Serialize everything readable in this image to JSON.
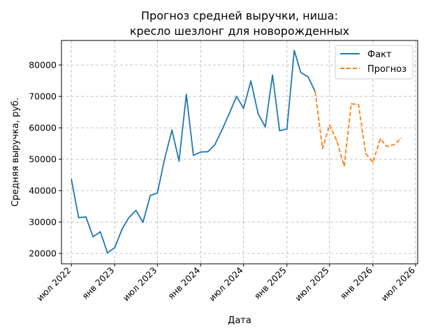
{
  "chart_data": {
    "type": "line",
    "title": "Прогноз средней выручки, ниша:\nкресло шезлонг для новорожденных",
    "title_lines": [
      "Прогноз средней выручки, ниша:",
      "кресло шезлонг для новорожденных"
    ],
    "xlabel": "Дата",
    "ylabel": "Средняя выручка, руб.",
    "x_ticks": [
      "2022-07-01",
      "2023-01-01",
      "2023-07-01",
      "2024-01-01",
      "2024-07-01",
      "2025-01-01",
      "2025-07-01",
      "2026-01-01",
      "2026-07-01"
    ],
    "x_tick_labels": [
      "июл 2022",
      "янв 2023",
      "июл 2023",
      "янв 2024",
      "июл 2024",
      "янв 2025",
      "июл 2025",
      "янв 2026",
      "июл 2026"
    ],
    "y_ticks": [
      20000,
      30000,
      40000,
      50000,
      60000,
      70000,
      80000
    ],
    "y_tick_labels": [
      "20000",
      "30000",
      "40000",
      "50000",
      "60000",
      "70000",
      "80000"
    ],
    "xlim": [
      "2022-05-20",
      "2026-07-10"
    ],
    "ylim": [
      16700,
      87800
    ],
    "grid": true,
    "legend": "top-right",
    "series": [
      {
        "name": "Факт",
        "color": "#1f77b4",
        "style": "solid",
        "points": [
          [
            "2022-07-01",
            43600
          ],
          [
            "2022-08-01",
            31400
          ],
          [
            "2022-09-01",
            31600
          ],
          [
            "2022-10-01",
            25300
          ],
          [
            "2022-11-01",
            26900
          ],
          [
            "2022-12-01",
            20200
          ],
          [
            "2023-01-01",
            21800
          ],
          [
            "2023-02-01",
            27700
          ],
          [
            "2023-03-01",
            31300
          ],
          [
            "2023-04-01",
            33700
          ],
          [
            "2023-05-01",
            29900
          ],
          [
            "2023-06-01",
            38500
          ],
          [
            "2023-07-01",
            39200
          ],
          [
            "2023-08-01",
            50100
          ],
          [
            "2023-09-01",
            59300
          ],
          [
            "2023-10-01",
            49400
          ],
          [
            "2023-11-01",
            70600
          ],
          [
            "2023-12-01",
            51200
          ],
          [
            "2024-01-01",
            52300
          ],
          [
            "2024-02-01",
            52400
          ],
          [
            "2024-03-01",
            54600
          ],
          [
            "2024-04-01",
            59400
          ],
          [
            "2024-05-01",
            64500
          ],
          [
            "2024-06-01",
            70000
          ],
          [
            "2024-07-01",
            66200
          ],
          [
            "2024-08-01",
            74900
          ],
          [
            "2024-09-01",
            64500
          ],
          [
            "2024-10-01",
            60300
          ],
          [
            "2024-11-01",
            76800
          ],
          [
            "2024-12-01",
            59100
          ],
          [
            "2025-01-01",
            59600
          ],
          [
            "2025-02-01",
            84600
          ],
          [
            "2025-03-01",
            77600
          ],
          [
            "2025-04-01",
            76200
          ],
          [
            "2025-05-01",
            71500
          ]
        ]
      },
      {
        "name": "Прогноз",
        "color": "#ff7f0e",
        "style": "dashed",
        "points": [
          [
            "2025-05-01",
            71500
          ],
          [
            "2025-06-01",
            53400
          ],
          [
            "2025-07-01",
            60900
          ],
          [
            "2025-08-01",
            55800
          ],
          [
            "2025-09-01",
            47800
          ],
          [
            "2025-10-01",
            67600
          ],
          [
            "2025-11-01",
            67400
          ],
          [
            "2025-12-01",
            51900
          ],
          [
            "2026-01-01",
            49000
          ],
          [
            "2026-02-01",
            56500
          ],
          [
            "2026-03-01",
            54100
          ],
          [
            "2026-04-01",
            54600
          ],
          [
            "2026-05-01",
            56700
          ]
        ]
      }
    ]
  }
}
